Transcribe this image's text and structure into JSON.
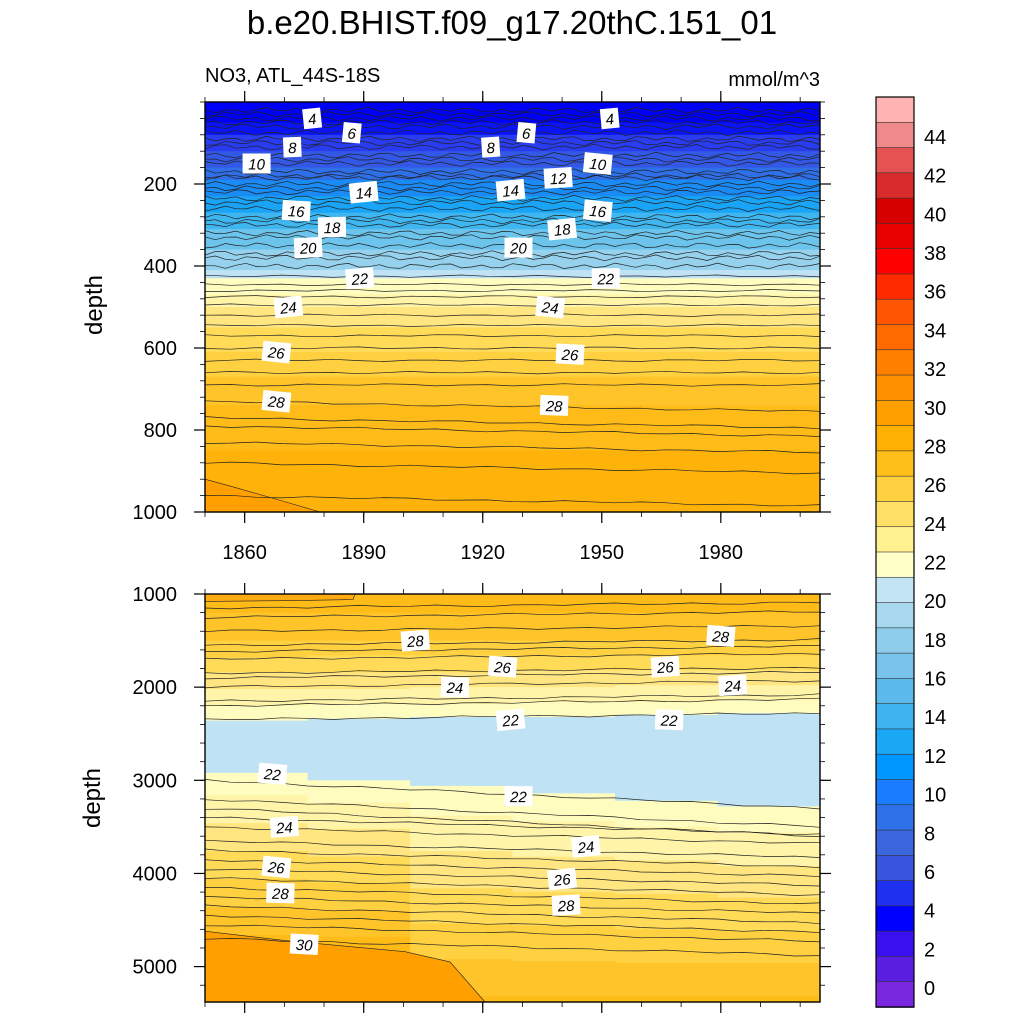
{
  "title": "b.e20.BHIST.f09_g17.20thC.151_01",
  "chart_data": {
    "type": "heatmap",
    "variable_label": "NO3, ATL_44S-18S",
    "units": "mmol/m^3",
    "x_ticks": [
      "1860",
      "1890",
      "1920",
      "1950",
      "1980"
    ],
    "x_range": [
      1850,
      2005
    ],
    "panels": [
      {
        "name": "upper",
        "ylabel": "depth",
        "ylim": [
          0,
          1000
        ],
        "y_ticks": [
          "200",
          "400",
          "600",
          "800",
          "1000"
        ],
        "contours": [
          {
            "level": 4,
            "depth": 40
          },
          {
            "level": 6,
            "depth": 75
          },
          {
            "level": 8,
            "depth": 110
          },
          {
            "level": 10,
            "depth": 150
          },
          {
            "level": 12,
            "depth": 185
          },
          {
            "level": 14,
            "depth": 220
          },
          {
            "level": 16,
            "depth": 260
          },
          {
            "level": 18,
            "depth": 300
          },
          {
            "level": 20,
            "depth": 350
          },
          {
            "level": 22,
            "depth": 425
          },
          {
            "level": 24,
            "depth": 495
          },
          {
            "level": 26,
            "depth": 600
          },
          {
            "level": 28,
            "depth": 730
          },
          {
            "level": 30,
            "depth": 960
          }
        ],
        "contour_labels": [
          {
            "text": "4",
            "x": 1877,
            "y": 40
          },
          {
            "text": "4",
            "x": 1952,
            "y": 40
          },
          {
            "text": "6",
            "x": 1887,
            "y": 75
          },
          {
            "text": "6",
            "x": 1931,
            "y": 75
          },
          {
            "text": "8",
            "x": 1872,
            "y": 110
          },
          {
            "text": "8",
            "x": 1922,
            "y": 110
          },
          {
            "text": "10",
            "x": 1863,
            "y": 150
          },
          {
            "text": "10",
            "x": 1949,
            "y": 150
          },
          {
            "text": "12",
            "x": 1939,
            "y": 185
          },
          {
            "text": "14",
            "x": 1890,
            "y": 220
          },
          {
            "text": "14",
            "x": 1927,
            "y": 215
          },
          {
            "text": "16",
            "x": 1873,
            "y": 265
          },
          {
            "text": "16",
            "x": 1949,
            "y": 265
          },
          {
            "text": "18",
            "x": 1882,
            "y": 305
          },
          {
            "text": "18",
            "x": 1940,
            "y": 310
          },
          {
            "text": "20",
            "x": 1876,
            "y": 355
          },
          {
            "text": "20",
            "x": 1929,
            "y": 355
          },
          {
            "text": "22",
            "x": 1889,
            "y": 430
          },
          {
            "text": "22",
            "x": 1951,
            "y": 430
          },
          {
            "text": "24",
            "x": 1871,
            "y": 500
          },
          {
            "text": "24",
            "x": 1937,
            "y": 500
          },
          {
            "text": "26",
            "x": 1868,
            "y": 610
          },
          {
            "text": "26",
            "x": 1942,
            "y": 615
          },
          {
            "text": "28",
            "x": 1868,
            "y": 730
          },
          {
            "text": "28",
            "x": 1938,
            "y": 740
          }
        ]
      },
      {
        "name": "lower",
        "ylabel": "depth",
        "ylim": [
          1000,
          5380
        ],
        "y_ticks": [
          "1000",
          "2000",
          "3000",
          "4000",
          "5000"
        ],
        "contours": [
          {
            "level": 28,
            "depth": 1400
          },
          {
            "level": 26,
            "depth": 1700
          },
          {
            "level": 24,
            "depth": 2000
          },
          {
            "level": 22,
            "depth": 2350
          },
          {
            "level": 22,
            "depth": 3000
          },
          {
            "level": 24,
            "depth": 3500
          },
          {
            "level": 26,
            "depth": 3950
          },
          {
            "level": 28,
            "depth": 4250
          },
          {
            "level": 30,
            "depth": 4700
          }
        ],
        "contour_labels": [
          {
            "text": "28",
            "x": 1903,
            "y": 1500
          },
          {
            "text": "28",
            "x": 1980,
            "y": 1450
          },
          {
            "text": "26",
            "x": 1925,
            "y": 1780
          },
          {
            "text": "26",
            "x": 1966,
            "y": 1780
          },
          {
            "text": "24",
            "x": 1913,
            "y": 2000
          },
          {
            "text": "24",
            "x": 1983,
            "y": 1980
          },
          {
            "text": "22",
            "x": 1927,
            "y": 2350
          },
          {
            "text": "22",
            "x": 1967,
            "y": 2350
          },
          {
            "text": "22",
            "x": 1867,
            "y": 2930
          },
          {
            "text": "22",
            "x": 1929,
            "y": 3170
          },
          {
            "text": "24",
            "x": 1870,
            "y": 3500
          },
          {
            "text": "24",
            "x": 1946,
            "y": 3710
          },
          {
            "text": "26",
            "x": 1868,
            "y": 3930
          },
          {
            "text": "26",
            "x": 1940,
            "y": 4060
          },
          {
            "text": "28",
            "x": 1869,
            "y": 4210
          },
          {
            "text": "28",
            "x": 1941,
            "y": 4340
          },
          {
            "text": "30",
            "x": 1875,
            "y": 4760
          }
        ]
      }
    ],
    "colorbar": {
      "labels": [
        "44",
        "42",
        "40",
        "38",
        "36",
        "34",
        "32",
        "30",
        "28",
        "26",
        "24",
        "22",
        "20",
        "18",
        "16",
        "14",
        "12",
        "10",
        "8",
        "6",
        "4",
        "2",
        "0"
      ],
      "colors_top_to_bottom": [
        "#ffb3b3",
        "#f08a8a",
        "#e55252",
        "#d92b2b",
        "#d60000",
        "#e60000",
        "#ff0000",
        "#ff2a00",
        "#ff5500",
        "#ff6a00",
        "#ff7f00",
        "#ff9100",
        "#ffa000",
        "#ffb000",
        "#ffbf1a",
        "#ffd040",
        "#ffe066",
        "#fff090",
        "#ffffc8",
        "#c2e4f4",
        "#a8d8ef",
        "#8ecdec",
        "#78c3ec",
        "#5cb9ec",
        "#3fb3f0",
        "#1aa8f5",
        "#0096ff",
        "#1a7dff",
        "#2f72e8",
        "#3a66dd",
        "#3a55dd",
        "#2030f0",
        "#0000ff",
        "#3a10f0",
        "#5a1ee0",
        "#7a28e0"
      ]
    }
  }
}
